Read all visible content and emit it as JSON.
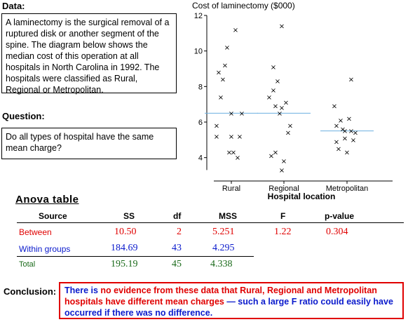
{
  "data_section": {
    "label": "Data:",
    "text": "A laminectomy is the surgical removal of a ruptured disk or another segment of the spine. The diagram below shows the median cost of this operation at all hospitals in North Carolina in 1992. The hospitals were classified as Rural, Regional or Metropolitan."
  },
  "question_section": {
    "label": "Question:",
    "text": "Do all types of hospital have the same mean charge?"
  },
  "chart_data": {
    "type": "scatter",
    "title": "Cost of laminectomy ($000)",
    "xlabel": "Hospital location",
    "ylabel": "",
    "categories": [
      "Rural",
      "Regional",
      "Metropolitan"
    ],
    "ylim": [
      3,
      12
    ],
    "yticks": [
      4,
      6,
      8,
      10,
      12
    ],
    "series": [
      {
        "category": "Rural",
        "mean": 6.5,
        "points": [
          [
            -0.35,
            5.2
          ],
          [
            -0.35,
            5.8
          ],
          [
            -0.3,
            8.8
          ],
          [
            -0.25,
            7.4
          ],
          [
            -0.2,
            8.4
          ],
          [
            -0.15,
            9.2
          ],
          [
            -0.1,
            10.2
          ],
          [
            -0.05,
            4.3
          ],
          [
            0.0,
            5.2
          ],
          [
            0.0,
            6.5
          ],
          [
            0.05,
            4.3
          ],
          [
            0.1,
            11.2
          ],
          [
            0.15,
            4.0
          ],
          [
            0.2,
            5.2
          ],
          [
            0.25,
            6.5
          ]
        ]
      },
      {
        "category": "Regional",
        "mean": 6.5,
        "points": [
          [
            -0.35,
            7.4
          ],
          [
            -0.3,
            4.1
          ],
          [
            -0.25,
            7.8
          ],
          [
            -0.25,
            9.1
          ],
          [
            -0.2,
            6.9
          ],
          [
            -0.2,
            4.3
          ],
          [
            -0.15,
            8.3
          ],
          [
            -0.1,
            6.5
          ],
          [
            -0.05,
            6.8
          ],
          [
            -0.05,
            11.4
          ],
          [
            -0.05,
            3.3
          ],
          [
            0.0,
            3.8
          ],
          [
            0.05,
            7.1
          ],
          [
            0.1,
            5.4
          ],
          [
            0.15,
            5.8
          ]
        ]
      },
      {
        "category": "Metropolitan",
        "mean": 5.5,
        "points": [
          [
            -0.3,
            6.9
          ],
          [
            -0.25,
            5.8
          ],
          [
            -0.25,
            4.9
          ],
          [
            -0.2,
            4.5
          ],
          [
            -0.15,
            6.1
          ],
          [
            -0.1,
            5.6
          ],
          [
            -0.05,
            5.5
          ],
          [
            -0.05,
            5.1
          ],
          [
            0.0,
            4.3
          ],
          [
            0.05,
            6.2
          ],
          [
            0.1,
            5.5
          ],
          [
            0.1,
            8.4
          ],
          [
            0.15,
            5.0
          ],
          [
            0.2,
            5.4
          ]
        ]
      }
    ],
    "mean_line_color": "#6bb0e0"
  },
  "anova": {
    "title": "Anova table",
    "headers": {
      "source": "Source",
      "ss": "SS",
      "df": "df",
      "mss": "MSS",
      "f": "F",
      "p": "p-value"
    },
    "between": {
      "source": "Between",
      "ss": "10.50",
      "df": "2",
      "mss": "5.251",
      "f": "1.22",
      "p": "0.304"
    },
    "within": {
      "source": "Within groups",
      "ss": "184.69",
      "df": "43",
      "mss": "4.295"
    },
    "total": {
      "source": "Total",
      "ss": "195.19",
      "df": "45",
      "mss": "4.338"
    }
  },
  "conclusion": {
    "label": "Conclusion:",
    "part1": "There is ",
    "part2": "no evidence from these data that Rural, Regional and Metropolitan hospitals have different mean charges",
    "part3": " — such a large F ratio could easily have occurred if there was no difference."
  },
  "colors": {
    "between": "#e00000",
    "within": "#0a1acc",
    "total": "#1a6a1a",
    "border": "#e00000"
  }
}
